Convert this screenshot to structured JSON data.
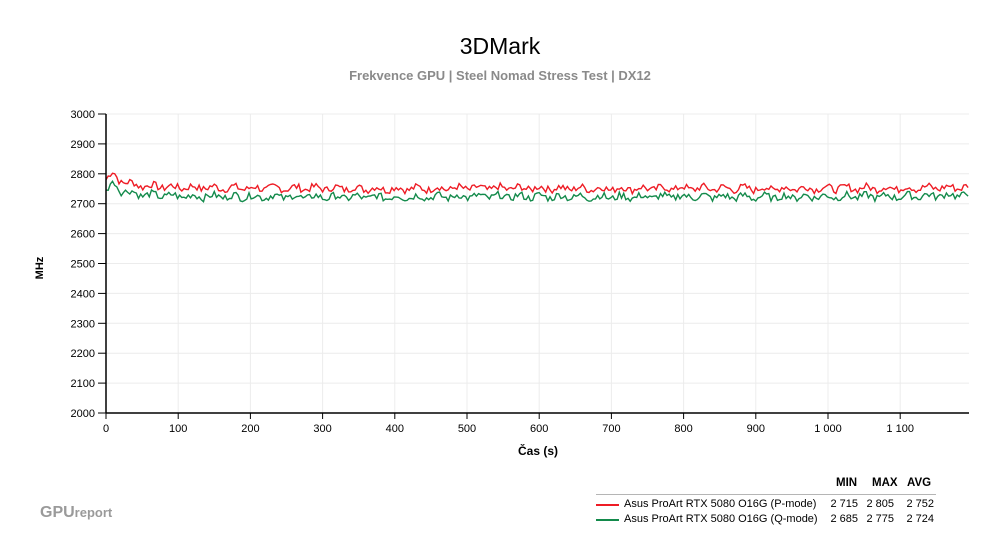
{
  "header": {
    "title": "3DMark",
    "subtitle": "Frekvence GPU | Steel Nomad Stress Test | DX12"
  },
  "branding": {
    "logo_main": "GPU",
    "logo_sub": "report"
  },
  "colors": {
    "p_mode": "#ee1c25",
    "q_mode": "#138a4b",
    "grid": "#ececec",
    "axis": "#000000"
  },
  "legend": {
    "headers": {
      "min": "MIN",
      "max": "MAX",
      "avg": "AVG"
    },
    "items": [
      {
        "name": "Asus ProArt RTX 5080 O16G (P-mode)",
        "min": "2 715",
        "max": "2 805",
        "avg": "2 752",
        "color": "#ee1c25"
      },
      {
        "name": "Asus ProArt RTX 5080 O16G (Q-mode)",
        "min": "2 685",
        "max": "2 775",
        "avg": "2 724",
        "color": "#138a4b"
      }
    ]
  },
  "chart_data": {
    "type": "line",
    "title": "3DMark",
    "subtitle": "Frekvence GPU | Steel Nomad Stress Test | DX12",
    "xlabel": "Čas (s)",
    "ylabel": "MHz",
    "xlim": [
      0,
      1195
    ],
    "ylim": [
      2000,
      3000
    ],
    "x_ticks": [
      0,
      100,
      200,
      300,
      400,
      500,
      600,
      700,
      800,
      900,
      1000,
      1100
    ],
    "x_tick_labels": [
      "0",
      "100",
      "200",
      "300",
      "400",
      "500",
      "600",
      "700",
      "800",
      "900",
      "1 000",
      "1 100"
    ],
    "y_ticks": [
      2000,
      2100,
      2200,
      2300,
      2400,
      2500,
      2600,
      2700,
      2800,
      2900,
      3000
    ],
    "y_tick_labels": [
      "2000",
      "2100",
      "2200",
      "2300",
      "2400",
      "2500",
      "2600",
      "2700",
      "2800",
      "2900",
      "3000"
    ],
    "grid": true,
    "legend_position": "bottom-right",
    "series": [
      {
        "name": "Asus ProArt RTX 5080 O16G (P-mode)",
        "color": "#ee1c25",
        "min": 2715,
        "max": 2805,
        "avg": 2752,
        "x": [
          0,
          10,
          20,
          30,
          50,
          100,
          200,
          300,
          400,
          500,
          600,
          700,
          800,
          900,
          1000,
          1100,
          1195
        ],
        "values": [
          2780,
          2805,
          2775,
          2770,
          2760,
          2755,
          2752,
          2752,
          2750,
          2752,
          2752,
          2750,
          2752,
          2750,
          2752,
          2752,
          2755
        ]
      },
      {
        "name": "Asus ProArt RTX 5080 O16G (Q-mode)",
        "color": "#138a4b",
        "min": 2685,
        "max": 2775,
        "avg": 2724,
        "x": [
          0,
          10,
          20,
          30,
          50,
          100,
          200,
          300,
          400,
          500,
          600,
          700,
          800,
          900,
          1000,
          1100,
          1195
        ],
        "values": [
          2740,
          2775,
          2745,
          2740,
          2730,
          2725,
          2724,
          2722,
          2722,
          2724,
          2724,
          2722,
          2724,
          2722,
          2724,
          2724,
          2730
        ]
      }
    ]
  }
}
